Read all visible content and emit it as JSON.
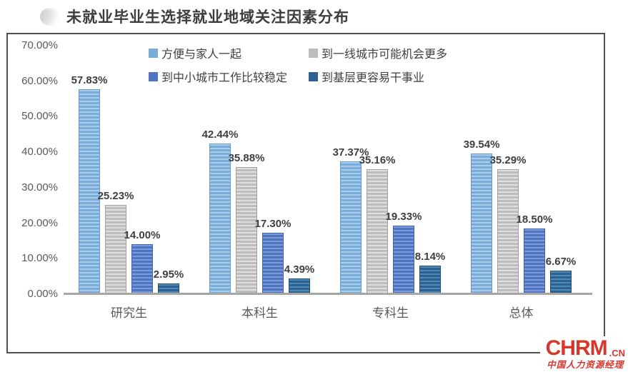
{
  "title": "未就业毕业生选择就业地域关注因素分布",
  "chart_data": {
    "type": "bar",
    "title": "未就业毕业生选择就业地域关注因素分布",
    "categories": [
      "研究生",
      "本科生",
      "专科生",
      "总体"
    ],
    "series": [
      {
        "name": "方便与家人一起",
        "color": "#79abdb",
        "stripe": "#aacde9",
        "border": "#639bd0",
        "values": [
          57.83,
          42.44,
          37.37,
          39.54
        ]
      },
      {
        "name": "到一线城市可能机会更多",
        "color": "#bdbdbd",
        "stripe": "#dfdfdf",
        "border": "#a0a0a0",
        "values": [
          25.23,
          35.88,
          35.16,
          35.29
        ]
      },
      {
        "name": "到中小城市工作比较稳定",
        "color": "#4e74c2",
        "stripe": "#7e9bd9",
        "border": "#3d62a8",
        "values": [
          14.0,
          17.3,
          19.33,
          18.5
        ]
      },
      {
        "name": "到基层更容易干事业",
        "color": "#2d6191",
        "stripe": "#5088b6",
        "border": "#24506f",
        "values": [
          2.95,
          4.39,
          8.14,
          6.67
        ]
      }
    ],
    "yticks": [
      "70.00%",
      "60.00%",
      "50.00%",
      "40.00%",
      "30.00%",
      "20.00%",
      "10.00%",
      "0.00%"
    ],
    "ylim": [
      0,
      70
    ],
    "grid": false,
    "legend_position": "top-center",
    "data_label_format": "0.00%"
  },
  "logo": {
    "brand": "CHRM",
    "tld": ".CN",
    "tagline": "中国人力资源经理",
    "color": "#d7362a"
  }
}
